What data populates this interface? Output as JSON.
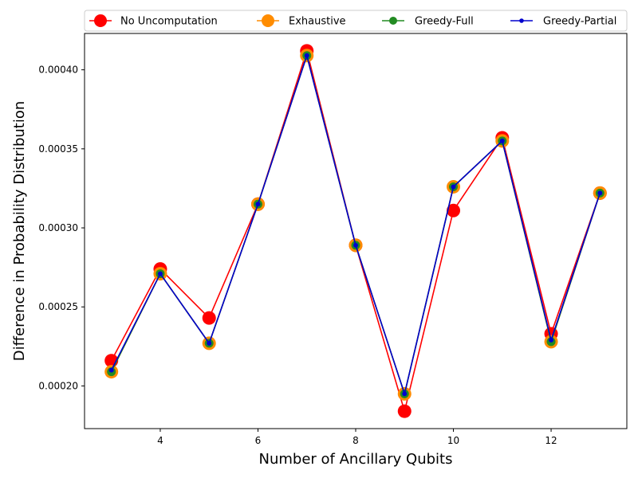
{
  "chart_data": {
    "type": "line",
    "xlabel": "Number of Ancillary Qubits",
    "ylabel": "Difference in Probability Distribution",
    "x": [
      3,
      4,
      5,
      6,
      7,
      8,
      9,
      10,
      11,
      12,
      13
    ],
    "xlim": [
      2.45,
      13.55
    ],
    "ylim": [
      0.000173,
      0.000423
    ],
    "x_ticks": [
      4,
      6,
      8,
      10,
      12
    ],
    "x_tick_labels": [
      "4",
      "6",
      "8",
      "10",
      "12"
    ],
    "y_ticks": [
      0.0002,
      0.00025,
      0.0003,
      0.00035,
      0.0004
    ],
    "y_tick_labels": [
      "0.00020",
      "0.00025",
      "0.00030",
      "0.00035",
      "0.00040"
    ],
    "grid": false,
    "legend_position": "top",
    "series": [
      {
        "name": "No Uncomputation",
        "color": "#ff0000",
        "marker_size": "large",
        "values": [
          0.000216,
          0.000274,
          0.000243,
          0.000315,
          0.000412,
          0.000289,
          0.000184,
          0.000311,
          0.000357,
          0.000233,
          0.000322
        ]
      },
      {
        "name": "Exhaustive",
        "color": "#ff8c00",
        "marker_size": "large",
        "values": [
          0.000209,
          0.000271,
          0.000227,
          0.000315,
          0.000409,
          0.000289,
          0.000195,
          0.000326,
          0.000355,
          0.000228,
          0.000322
        ]
      },
      {
        "name": "Greedy-Full",
        "color": "#228b22",
        "marker_size": "medium",
        "values": [
          0.000209,
          0.000271,
          0.000227,
          0.000315,
          0.000409,
          0.000289,
          0.000195,
          0.000326,
          0.000355,
          0.000228,
          0.000322
        ]
      },
      {
        "name": "Greedy-Partial",
        "color": "#0000cd",
        "marker_size": "small",
        "values": [
          0.00021,
          0.000271,
          0.000227,
          0.000315,
          0.000409,
          0.000289,
          0.000195,
          0.000326,
          0.000355,
          0.000229,
          0.000322
        ]
      }
    ]
  }
}
